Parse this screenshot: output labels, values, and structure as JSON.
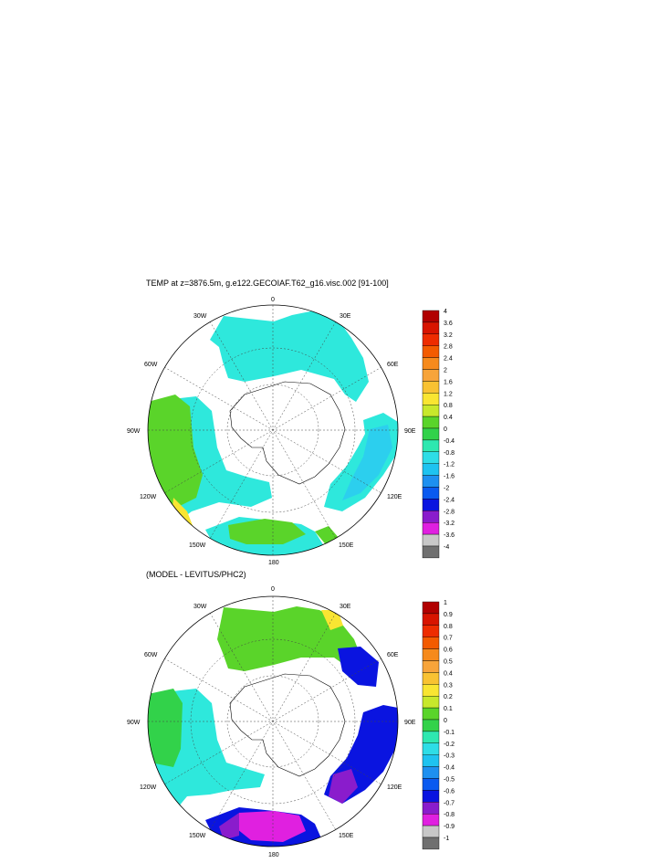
{
  "panel1": {
    "title": "TEMP at z=3876.5m, g.e122.GECOIAF.T62_g16.visc.002 [91-100]",
    "colorbar": [
      "4",
      "3.6",
      "3.2",
      "2.8",
      "2.4",
      "2",
      "1.6",
      "1.2",
      "0.8",
      "0.4",
      "0",
      "-0.4",
      "-0.8",
      "-1.2",
      "-1.6",
      "-2",
      "-2.4",
      "-2.8",
      "-3.2",
      "-3.6",
      "-4"
    ]
  },
  "panel2": {
    "title": "(MODEL - LEVITUS/PHC2)",
    "colorbar": [
      "1",
      "0.9",
      "0.8",
      "0.7",
      "0.6",
      "0.5",
      "0.4",
      "0.3",
      "0.2",
      "0.1",
      "0",
      "-0.1",
      "-0.2",
      "-0.3",
      "-0.4",
      "-0.5",
      "-0.6",
      "-0.7",
      "-0.8",
      "-0.9",
      "-1"
    ]
  },
  "longitude_labels": {
    "top": "0",
    "upper_left": "30W",
    "upper_right": "30E",
    "mid_upper_left": "60W",
    "mid_upper_right": "60E",
    "left": "90W",
    "right": "90E",
    "mid_lower_left": "120W",
    "mid_lower_right": "120E",
    "lower_left": "150W",
    "lower_right": "150E",
    "bottom": "180"
  },
  "colors": {
    "scale": [
      "#b10000",
      "#d81400",
      "#ee2c00",
      "#f35b00",
      "#f68a1c",
      "#f7a43a",
      "#f8c232",
      "#f9e532",
      "#c8e82c",
      "#5ad42a",
      "#32d24a",
      "#2ee8b0",
      "#2edde6",
      "#1ec3f0",
      "#1e90f0",
      "#0a5af0",
      "#0a14e0",
      "#8a1ccc",
      "#e020e0",
      "#c8c8c8",
      "#707070"
    ],
    "land": "#ffffff",
    "map_outline": "#000000"
  }
}
